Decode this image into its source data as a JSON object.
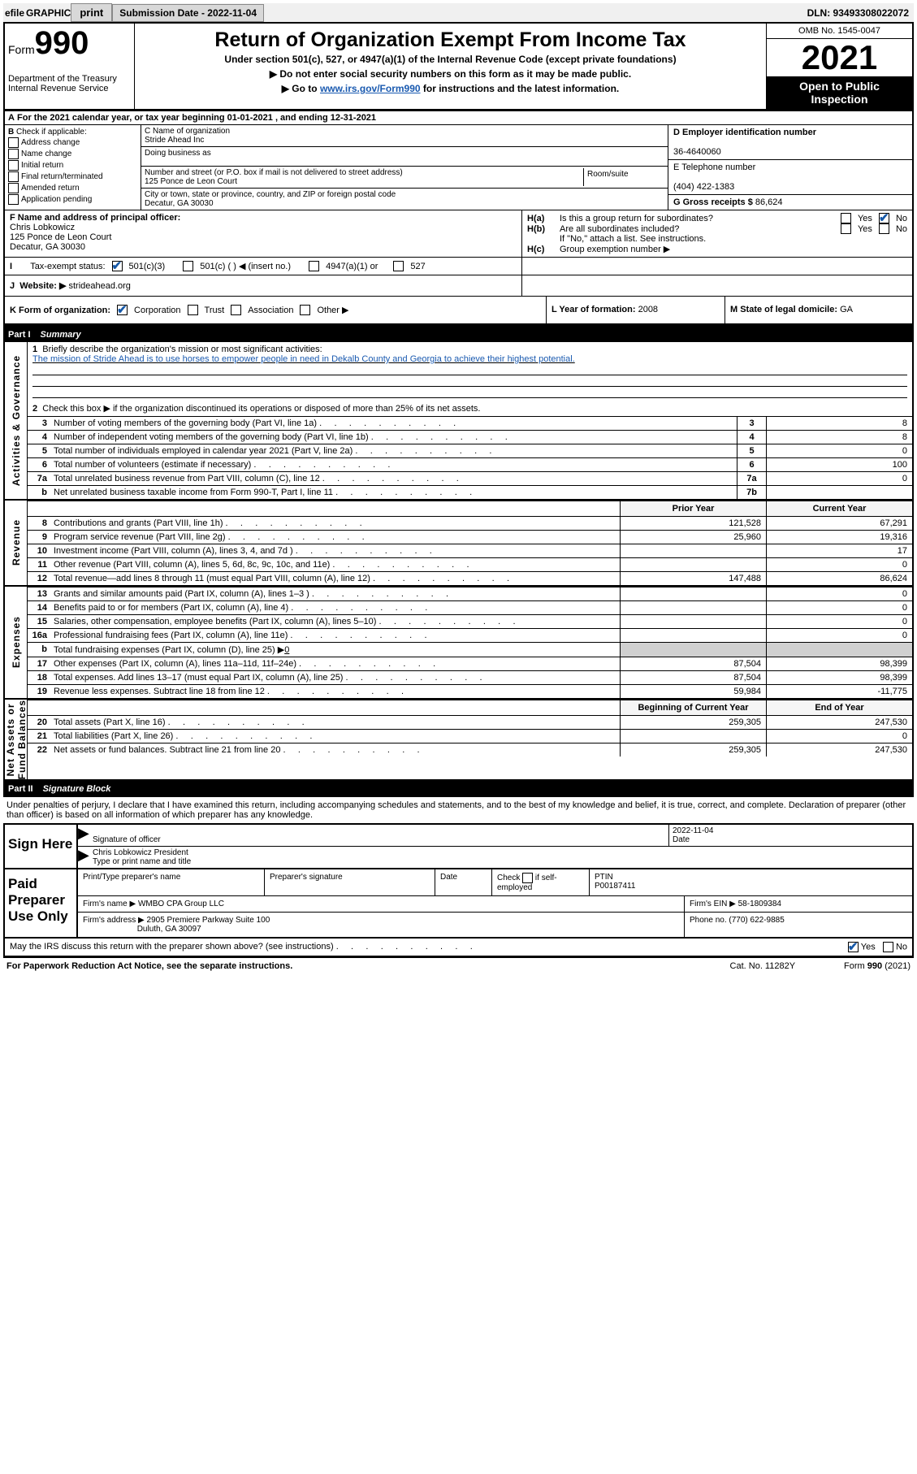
{
  "topbar": {
    "efile_label": "efile",
    "graphic_label": "GRAPHIC",
    "print_btn": "print",
    "submission_label": "Submission Date - 2022-11-04",
    "dln": "DLN: 93493308022072"
  },
  "header": {
    "form_word": "Form",
    "form_num": "990",
    "dept": "Department of the Treasury\nInternal Revenue Service",
    "title": "Return of Organization Exempt From Income Tax",
    "sub1": "Under section 501(c), 527, or 4947(a)(1) of the Internal Revenue Code (except private foundations)",
    "sub2": "▶ Do not enter social security numbers on this form as it may be made public.",
    "sub3a": "▶ Go to ",
    "sub3_link": "www.irs.gov/Form990",
    "sub3b": " for instructions and the latest information.",
    "omb": "OMB No. 1545-0047",
    "year": "2021",
    "inspect1": "Open to Public",
    "inspect2": "Inspection"
  },
  "rowA": "For the 2021 calendar year, or tax year beginning 01-01-2021   , and ending 12-31-2021",
  "colB": {
    "head": "Check if applicable:",
    "opts": [
      "Address change",
      "Name change",
      "Initial return",
      "Final return/terminated",
      "Amended return",
      "Application pending"
    ]
  },
  "colC": {
    "c_label": "C Name of organization",
    "c_name": "Stride Ahead Inc",
    "dba_label": "Doing business as",
    "addr_label": "Number and street (or P.O. box if mail is not delivered to street address)",
    "room_label": "Room/suite",
    "addr": "125 Ponce de Leon Court",
    "city_label": "City or town, state or province, country, and ZIP or foreign postal code",
    "city": "Decatur, GA  30030"
  },
  "colDE": {
    "d_label": "D Employer identification number",
    "d_val": "36-4640060",
    "e_label": "E Telephone number",
    "e_val": "(404) 422-1383",
    "g_label": "G Gross receipts $",
    "g_val": "86,624"
  },
  "rowF": {
    "label": "F  Name and address of principal officer:",
    "name": "Chris Lobkowicz",
    "addr": "125 Ponce de Leon Court",
    "city": "Decatur, GA  30030"
  },
  "rowH": {
    "ha1": "H(a)",
    "ha_text": "Is this a group return for subordinates?",
    "hb1": "H(b)",
    "hb_text": "Are all subordinates included?",
    "hb_note": "If \"No,\" attach a list. See instructions.",
    "hc1": "H(c)",
    "hc_text": "Group exemption number ▶",
    "yes": "Yes",
    "no": "No"
  },
  "rowI": {
    "label": "Tax-exempt status:",
    "opt1": "501(c)(3)",
    "opt2": "501(c) (  ) ◀ (insert no.)",
    "opt3": "4947(a)(1) or",
    "opt4": "527"
  },
  "rowJ": {
    "label": "Website: ▶",
    "val": "strideahead.org"
  },
  "rowK": {
    "label": "K Form of organization:",
    "opts": [
      "Corporation",
      "Trust",
      "Association",
      "Other ▶"
    ]
  },
  "rowL": {
    "label": "L Year of formation:",
    "val": "2008"
  },
  "rowM": {
    "label": "M State of legal domicile:",
    "val": "GA"
  },
  "part1": {
    "num": "Part I",
    "title": "Summary"
  },
  "side_labels": {
    "ag": "Activities & Governance",
    "rev": "Revenue",
    "exp": "Expenses",
    "nafb": "Net Assets or\nFund Balances"
  },
  "line1": {
    "label": "Briefly describe the organization's mission or most significant activities:",
    "text": "The mission of Stride Ahead is to use horses to empower people in need in Dekalb County and Georgia to achieve their highest potential."
  },
  "line2": "Check this box ▶      if the organization discontinued its operations or disposed of more than 25% of its net assets.",
  "lines_ag": [
    {
      "n": "3",
      "desc": "Number of voting members of the governing body (Part VI, line 1a)",
      "box": "3",
      "val": "8"
    },
    {
      "n": "4",
      "desc": "Number of independent voting members of the governing body (Part VI, line 1b)",
      "box": "4",
      "val": "8"
    },
    {
      "n": "5",
      "desc": "Total number of individuals employed in calendar year 2021 (Part V, line 2a)",
      "box": "5",
      "val": "0"
    },
    {
      "n": "6",
      "desc": "Total number of volunteers (estimate if necessary)",
      "box": "6",
      "val": "100"
    },
    {
      "n": "7a",
      "desc": "Total unrelated business revenue from Part VIII, column (C), line 12",
      "box": "7a",
      "val": "0"
    },
    {
      "n": "b",
      "desc": "Net unrelated business taxable income from Form 990-T, Part I, line 11",
      "box": "7b",
      "val": ""
    }
  ],
  "currprior_hdr": {
    "prior": "Prior Year",
    "current": "Current Year"
  },
  "rev_rows": [
    {
      "n": "8",
      "desc": "Contributions and grants (Part VIII, line 1h)",
      "p": "121,528",
      "c": "67,291"
    },
    {
      "n": "9",
      "desc": "Program service revenue (Part VIII, line 2g)",
      "p": "25,960",
      "c": "19,316"
    },
    {
      "n": "10",
      "desc": "Investment income (Part VIII, column (A), lines 3, 4, and 7d )",
      "p": "",
      "c": "17"
    },
    {
      "n": "11",
      "desc": "Other revenue (Part VIII, column (A), lines 5, 6d, 8c, 9c, 10c, and 11e)",
      "p": "",
      "c": "0"
    },
    {
      "n": "12",
      "desc": "Total revenue—add lines 8 through 11 (must equal Part VIII, column (A), line 12)",
      "p": "147,488",
      "c": "86,624"
    }
  ],
  "exp_rows": [
    {
      "n": "13",
      "desc": "Grants and similar amounts paid (Part IX, column (A), lines 1–3 )",
      "p": "",
      "c": "0"
    },
    {
      "n": "14",
      "desc": "Benefits paid to or for members (Part IX, column (A), line 4)",
      "p": "",
      "c": "0"
    },
    {
      "n": "15",
      "desc": "Salaries, other compensation, employee benefits (Part IX, column (A), lines 5–10)",
      "p": "",
      "c": "0"
    },
    {
      "n": "16a",
      "desc": "Professional fundraising fees (Part IX, column (A), line 11e)",
      "p": "",
      "c": "0"
    }
  ],
  "line16b": {
    "n": "b",
    "desc": "Total fundraising expenses (Part IX, column (D), line 25) ▶",
    "val": "0"
  },
  "exp_rows2": [
    {
      "n": "17",
      "desc": "Other expenses (Part IX, column (A), lines 11a–11d, 11f–24e)",
      "p": "87,504",
      "c": "98,399"
    },
    {
      "n": "18",
      "desc": "Total expenses. Add lines 13–17 (must equal Part IX, column (A), line 25)",
      "p": "87,504",
      "c": "98,399"
    },
    {
      "n": "19",
      "desc": "Revenue less expenses. Subtract line 18 from line 12",
      "p": "59,984",
      "c": "-11,775"
    }
  ],
  "bal_hdr": {
    "begin": "Beginning of Current Year",
    "end": "End of Year"
  },
  "bal_rows": [
    {
      "n": "20",
      "desc": "Total assets (Part X, line 16)",
      "p": "259,305",
      "c": "247,530"
    },
    {
      "n": "21",
      "desc": "Total liabilities (Part X, line 26)",
      "p": "",
      "c": "0"
    },
    {
      "n": "22",
      "desc": "Net assets or fund balances. Subtract line 21 from line 20",
      "p": "259,305",
      "c": "247,530"
    }
  ],
  "part2": {
    "num": "Part II",
    "title": "Signature Block"
  },
  "sig_intro": "Under penalties of perjury, I declare that I have examined this return, including accompanying schedules and statements, and to the best of my knowledge and belief, it is true, correct, and complete. Declaration of preparer (other than officer) is based on all information of which preparer has any knowledge.",
  "sign": {
    "here": "Sign Here",
    "sig_label": "Signature of officer",
    "date_label": "Date",
    "date_val": "2022-11-04",
    "name": "Chris Lobkowicz  President",
    "name_label": "Type or print name and title"
  },
  "prep": {
    "label": "Paid Preparer Use Only",
    "h1": "Print/Type preparer's name",
    "h2": "Preparer's signature",
    "h3": "Date",
    "h4a": "Check",
    "h4b": "if self-employed",
    "h5": "PTIN",
    "ptin": "P00187411",
    "firm_label": "Firm's name    ▶",
    "firm": "WMBO CPA Group LLC",
    "ein_label": "Firm's EIN ▶",
    "ein": "58-1809384",
    "addr_label": "Firm's address ▶",
    "addr1": "2905 Premiere Parkway Suite 100",
    "addr2": "Duluth, GA  30097",
    "phone_label": "Phone no.",
    "phone": "(770) 622-9885"
  },
  "discuss": {
    "text": "May the IRS discuss this return with the preparer shown above? (see instructions)",
    "yes": "Yes",
    "no": "No"
  },
  "footer": {
    "left": "For Paperwork Reduction Act Notice, see the separate instructions.",
    "mid": "Cat. No. 11282Y",
    "right": "Form 990 (2021)"
  }
}
